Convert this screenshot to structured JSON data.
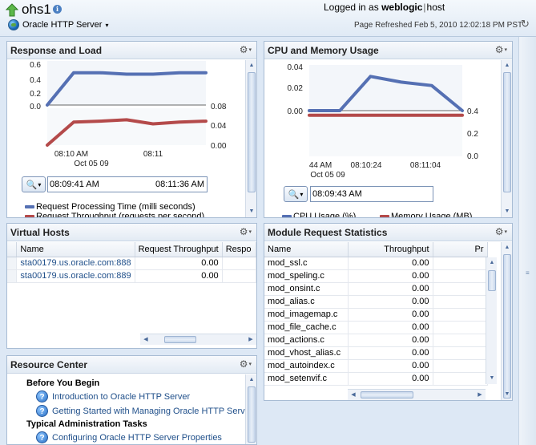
{
  "header": {
    "host_name": "ohs1",
    "target_menu": "Oracle HTTP Server",
    "logged_in_label": "Logged in as",
    "user": "weblogic",
    "separator": "|",
    "host": "host",
    "page_refreshed": "Page Refreshed Feb 5, 2010 12:02:18 PM PST"
  },
  "response_load": {
    "title": "Response and Load",
    "y_left_ticks": [
      "0.6",
      "0.4",
      "0.2",
      "0.0"
    ],
    "y_right_ticks": [
      "0.08",
      "0.04",
      "0.00"
    ],
    "x_ticks": [
      "08:10 AM",
      "08:11"
    ],
    "x_date": "Oct 05 09",
    "range_start": "08:09:41 AM",
    "range_end": "08:11:36 AM",
    "legend": [
      {
        "label": "Request Processing Time (milli seconds)",
        "color": "#5570b3"
      },
      {
        "label": "Request Throughput (requests per second)",
        "color": "#b44a4a"
      }
    ]
  },
  "cpu_memory": {
    "title": "CPU and Memory Usage",
    "y_left_ticks": [
      "0.04",
      "0.02",
      "0.00"
    ],
    "y_right_ticks": [
      "0.4",
      "0.2",
      "0.0"
    ],
    "x_ticks": [
      "44 AM",
      "08:10:24",
      "08:11:04"
    ],
    "x_date": "Oct 05 09",
    "range_start": "08:09:43 AM",
    "legend": [
      {
        "label": "CPU Usage (%)",
        "color": "#5570b3"
      },
      {
        "label": "Memory Usage (MB)",
        "color": "#b44a4a"
      }
    ]
  },
  "chart_data": [
    {
      "type": "line",
      "title": "Response and Load",
      "x": [
        "08:09:41",
        "08:10",
        "08:10:20",
        "08:10:40",
        "08:11",
        "08:11:20",
        "08:11:36"
      ],
      "series": [
        {
          "name": "Request Processing Time (milli seconds)",
          "axis": "left",
          "values": [
            0.0,
            0.44,
            0.44,
            0.42,
            0.42,
            0.44,
            0.44
          ]
        },
        {
          "name": "Request Throughput (requests per second)",
          "axis": "right",
          "values": [
            0.0,
            0.05,
            0.052,
            0.055,
            0.046,
            0.05,
            0.052
          ]
        }
      ],
      "ylim_left": [
        0,
        0.6
      ],
      "ylim_right": [
        0,
        0.08
      ],
      "xlabel": "Oct 05 09"
    },
    {
      "type": "line",
      "title": "CPU and Memory Usage",
      "x": [
        "08:09:43",
        "08:10:04",
        "08:10:24",
        "08:10:44",
        "08:11:04",
        "08:11:24"
      ],
      "series": [
        {
          "name": "CPU Usage (%)",
          "axis": "left",
          "values": [
            0.0,
            0.0,
            0.03,
            0.025,
            0.022,
            0.0
          ]
        },
        {
          "name": "Memory Usage (MB)",
          "axis": "right",
          "values": [
            0.38,
            0.38,
            0.38,
            0.38,
            0.38,
            0.38
          ]
        }
      ],
      "ylim_left": [
        0,
        0.04
      ],
      "ylim_right": [
        0,
        0.4
      ],
      "xlabel": "Oct 05 09"
    }
  ],
  "virtual_hosts": {
    "title": "Virtual Hosts",
    "columns": [
      "Name",
      "Request Throughput",
      "Respo"
    ],
    "rows": [
      {
        "name": "sta00179.us.oracle.com:888",
        "throughput": "0.00"
      },
      {
        "name": "sta00179.us.oracle.com:889",
        "throughput": "0.00"
      }
    ]
  },
  "module_stats": {
    "title": "Module Request Statistics",
    "columns": [
      "Name",
      "Throughput",
      "Pr"
    ],
    "rows": [
      {
        "name": "mod_ssl.c",
        "throughput": "0.00"
      },
      {
        "name": "mod_speling.c",
        "throughput": "0.00"
      },
      {
        "name": "mod_onsint.c",
        "throughput": "0.00"
      },
      {
        "name": "mod_alias.c",
        "throughput": "0.00"
      },
      {
        "name": "mod_imagemap.c",
        "throughput": "0.00"
      },
      {
        "name": "mod_file_cache.c",
        "throughput": "0.00"
      },
      {
        "name": "mod_actions.c",
        "throughput": "0.00"
      },
      {
        "name": "mod_vhost_alias.c",
        "throughput": "0.00"
      },
      {
        "name": "mod_autoindex.c",
        "throughput": "0.00"
      },
      {
        "name": "mod_setenvif.c",
        "throughput": "0.00"
      }
    ]
  },
  "resource_center": {
    "title": "Resource Center",
    "before_begin": "Before You Begin",
    "typical_tasks": "Typical Administration Tasks",
    "links": [
      "Introduction to Oracle HTTP Server",
      "Getting Started with Managing Oracle HTTP Serv",
      "Configuring Oracle HTTP Server Properties"
    ]
  },
  "icons": {
    "gear": "⚙",
    "caret": "▾",
    "refresh": "↻",
    "help": "?",
    "info": "i"
  }
}
